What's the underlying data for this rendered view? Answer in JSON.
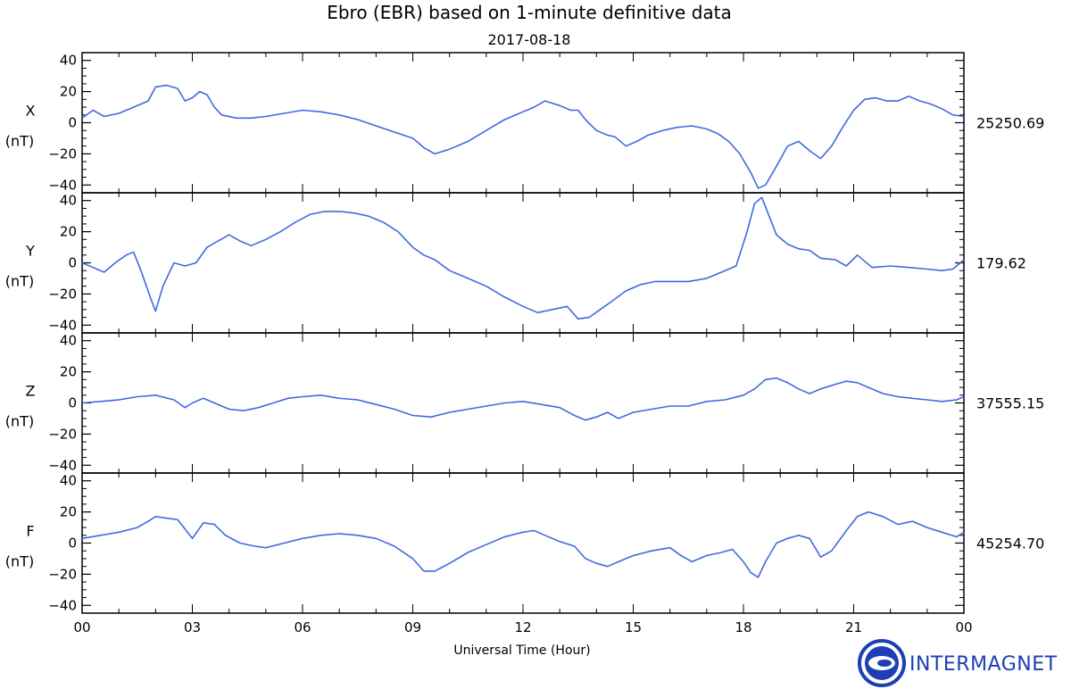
{
  "chart_data": {
    "type": "line",
    "title": "Ebro (EBR) based on 1-minute definitive data",
    "subtitle": "2017-08-18",
    "xlabel": "Universal Time (Hour)",
    "x_ticks": [
      "00",
      "03",
      "06",
      "09",
      "12",
      "15",
      "18",
      "21",
      "00"
    ],
    "xlim": [
      0,
      24
    ],
    "ylim": [
      -45,
      45
    ],
    "y_ticks": [
      40,
      20,
      0,
      -20,
      -40
    ],
    "unit_label": "(nT)",
    "line_color": "#4169e1",
    "grid": false,
    "series": [
      {
        "name": "X",
        "baseline": "25250.69",
        "x": [
          0,
          0.3,
          0.6,
          1.0,
          1.4,
          1.8,
          2.0,
          2.3,
          2.6,
          2.8,
          3.0,
          3.2,
          3.4,
          3.6,
          3.8,
          4.2,
          4.6,
          5.0,
          5.5,
          6.0,
          6.5,
          7.0,
          7.5,
          8.0,
          8.5,
          9.0,
          9.3,
          9.6,
          10.0,
          10.5,
          11.0,
          11.5,
          12.0,
          12.3,
          12.6,
          13.0,
          13.3,
          13.5,
          13.7,
          14.0,
          14.3,
          14.5,
          14.8,
          15.1,
          15.4,
          15.8,
          16.2,
          16.6,
          17.0,
          17.3,
          17.6,
          17.9,
          18.2,
          18.4,
          18.6,
          18.9,
          19.2,
          19.5,
          19.8,
          20.1,
          20.4,
          20.7,
          21.0,
          21.3,
          21.6,
          21.9,
          22.2,
          22.5,
          22.8,
          23.1,
          23.4,
          23.7,
          24.0
        ],
        "values": [
          3,
          8,
          4,
          6,
          10,
          14,
          23,
          24,
          22,
          14,
          16,
          20,
          18,
          10,
          5,
          3,
          3,
          4,
          6,
          8,
          7,
          5,
          2,
          -2,
          -6,
          -10,
          -16,
          -20,
          -17,
          -12,
          -5,
          2,
          7,
          10,
          14,
          11,
          8,
          8,
          2,
          -5,
          -8,
          -9,
          -15,
          -12,
          -8,
          -5,
          -3,
          -2,
          -4,
          -7,
          -12,
          -20,
          -32,
          -42,
          -40,
          -28,
          -15,
          -12,
          -18,
          -23,
          -15,
          -3,
          8,
          15,
          16,
          14,
          14,
          17,
          14,
          12,
          9,
          5,
          4
        ]
      },
      {
        "name": "Y",
        "baseline": "179.62",
        "x": [
          0,
          0.3,
          0.6,
          0.9,
          1.2,
          1.4,
          1.6,
          1.9,
          2.0,
          2.2,
          2.5,
          2.8,
          3.1,
          3.4,
          3.7,
          4.0,
          4.3,
          4.6,
          5.0,
          5.4,
          5.8,
          6.2,
          6.6,
          7.0,
          7.4,
          7.8,
          8.2,
          8.6,
          9.0,
          9.3,
          9.6,
          10.0,
          10.5,
          11.0,
          11.5,
          12.0,
          12.4,
          12.8,
          13.2,
          13.5,
          13.8,
          14.1,
          14.4,
          14.8,
          15.2,
          15.6,
          16.0,
          16.5,
          17.0,
          17.4,
          17.8,
          18.1,
          18.3,
          18.5,
          18.7,
          18.9,
          19.2,
          19.5,
          19.8,
          20.1,
          20.5,
          20.8,
          21.1,
          21.5,
          22.0,
          22.5,
          23.0,
          23.4,
          23.7,
          24.0
        ],
        "values": [
          0,
          -3,
          -6,
          0,
          5,
          7,
          -5,
          -25,
          -31,
          -15,
          0,
          -2,
          0,
          10,
          14,
          18,
          14,
          11,
          15,
          20,
          26,
          31,
          33,
          33,
          32,
          30,
          26,
          20,
          10,
          5,
          2,
          -5,
          -10,
          -15,
          -22,
          -28,
          -32,
          -30,
          -28,
          -36,
          -35,
          -30,
          -25,
          -18,
          -14,
          -12,
          -12,
          -12,
          -10,
          -6,
          -2,
          20,
          38,
          42,
          30,
          18,
          12,
          9,
          8,
          3,
          2,
          -2,
          5,
          -3,
          -2,
          -3,
          -4,
          -5,
          -4,
          2
        ]
      },
      {
        "name": "Z",
        "baseline": "37555.15",
        "x": [
          0,
          0.5,
          1.0,
          1.5,
          2.0,
          2.5,
          2.8,
          3.0,
          3.3,
          3.6,
          4.0,
          4.4,
          4.8,
          5.2,
          5.6,
          6.0,
          6.5,
          7.0,
          7.5,
          8.0,
          8.5,
          9.0,
          9.5,
          10.0,
          10.5,
          11.0,
          11.5,
          12.0,
          12.5,
          13.0,
          13.4,
          13.7,
          14.0,
          14.3,
          14.6,
          15.0,
          15.5,
          16.0,
          16.5,
          17.0,
          17.5,
          18.0,
          18.3,
          18.6,
          18.9,
          19.2,
          19.5,
          19.8,
          20.1,
          20.5,
          20.8,
          21.1,
          21.4,
          21.8,
          22.2,
          22.6,
          23.0,
          23.4,
          23.8,
          24.0
        ],
        "values": [
          0,
          1,
          2,
          4,
          5,
          2,
          -3,
          0,
          3,
          0,
          -4,
          -5,
          -3,
          0,
          3,
          4,
          5,
          3,
          2,
          -1,
          -4,
          -8,
          -9,
          -6,
          -4,
          -2,
          0,
          1,
          -1,
          -3,
          -8,
          -11,
          -9,
          -6,
          -10,
          -6,
          -4,
          -2,
          -2,
          1,
          2,
          5,
          9,
          15,
          16,
          13,
          9,
          6,
          9,
          12,
          14,
          13,
          10,
          6,
          4,
          3,
          2,
          1,
          2,
          4
        ]
      },
      {
        "name": "F",
        "baseline": "45254.70",
        "x": [
          0,
          0.5,
          1.0,
          1.5,
          1.8,
          2.0,
          2.3,
          2.6,
          2.8,
          3.0,
          3.3,
          3.6,
          3.9,
          4.3,
          4.7,
          5.0,
          5.5,
          6.0,
          6.5,
          7.0,
          7.5,
          8.0,
          8.5,
          9.0,
          9.3,
          9.6,
          10.0,
          10.5,
          11.0,
          11.5,
          12.0,
          12.3,
          12.6,
          13.0,
          13.4,
          13.7,
          14.0,
          14.3,
          14.6,
          15.0,
          15.5,
          16.0,
          16.3,
          16.6,
          17.0,
          17.4,
          17.7,
          18.0,
          18.2,
          18.4,
          18.6,
          18.9,
          19.2,
          19.5,
          19.8,
          20.1,
          20.4,
          20.8,
          21.1,
          21.4,
          21.8,
          22.2,
          22.6,
          23.0,
          23.4,
          23.8,
          24.0
        ],
        "values": [
          3,
          5,
          7,
          10,
          14,
          17,
          16,
          15,
          9,
          3,
          13,
          12,
          5,
          0,
          -2,
          -3,
          0,
          3,
          5,
          6,
          5,
          3,
          -2,
          -10,
          -18,
          -18,
          -13,
          -6,
          -1,
          4,
          7,
          8,
          5,
          1,
          -2,
          -10,
          -13,
          -15,
          -12,
          -8,
          -5,
          -3,
          -8,
          -12,
          -8,
          -6,
          -4,
          -12,
          -19,
          -22,
          -12,
          0,
          3,
          5,
          3,
          -9,
          -5,
          8,
          17,
          20,
          17,
          12,
          14,
          10,
          7,
          4,
          7
        ]
      }
    ]
  },
  "logo": {
    "text": "INTERMAGNET",
    "color": "#1d3fb5"
  }
}
